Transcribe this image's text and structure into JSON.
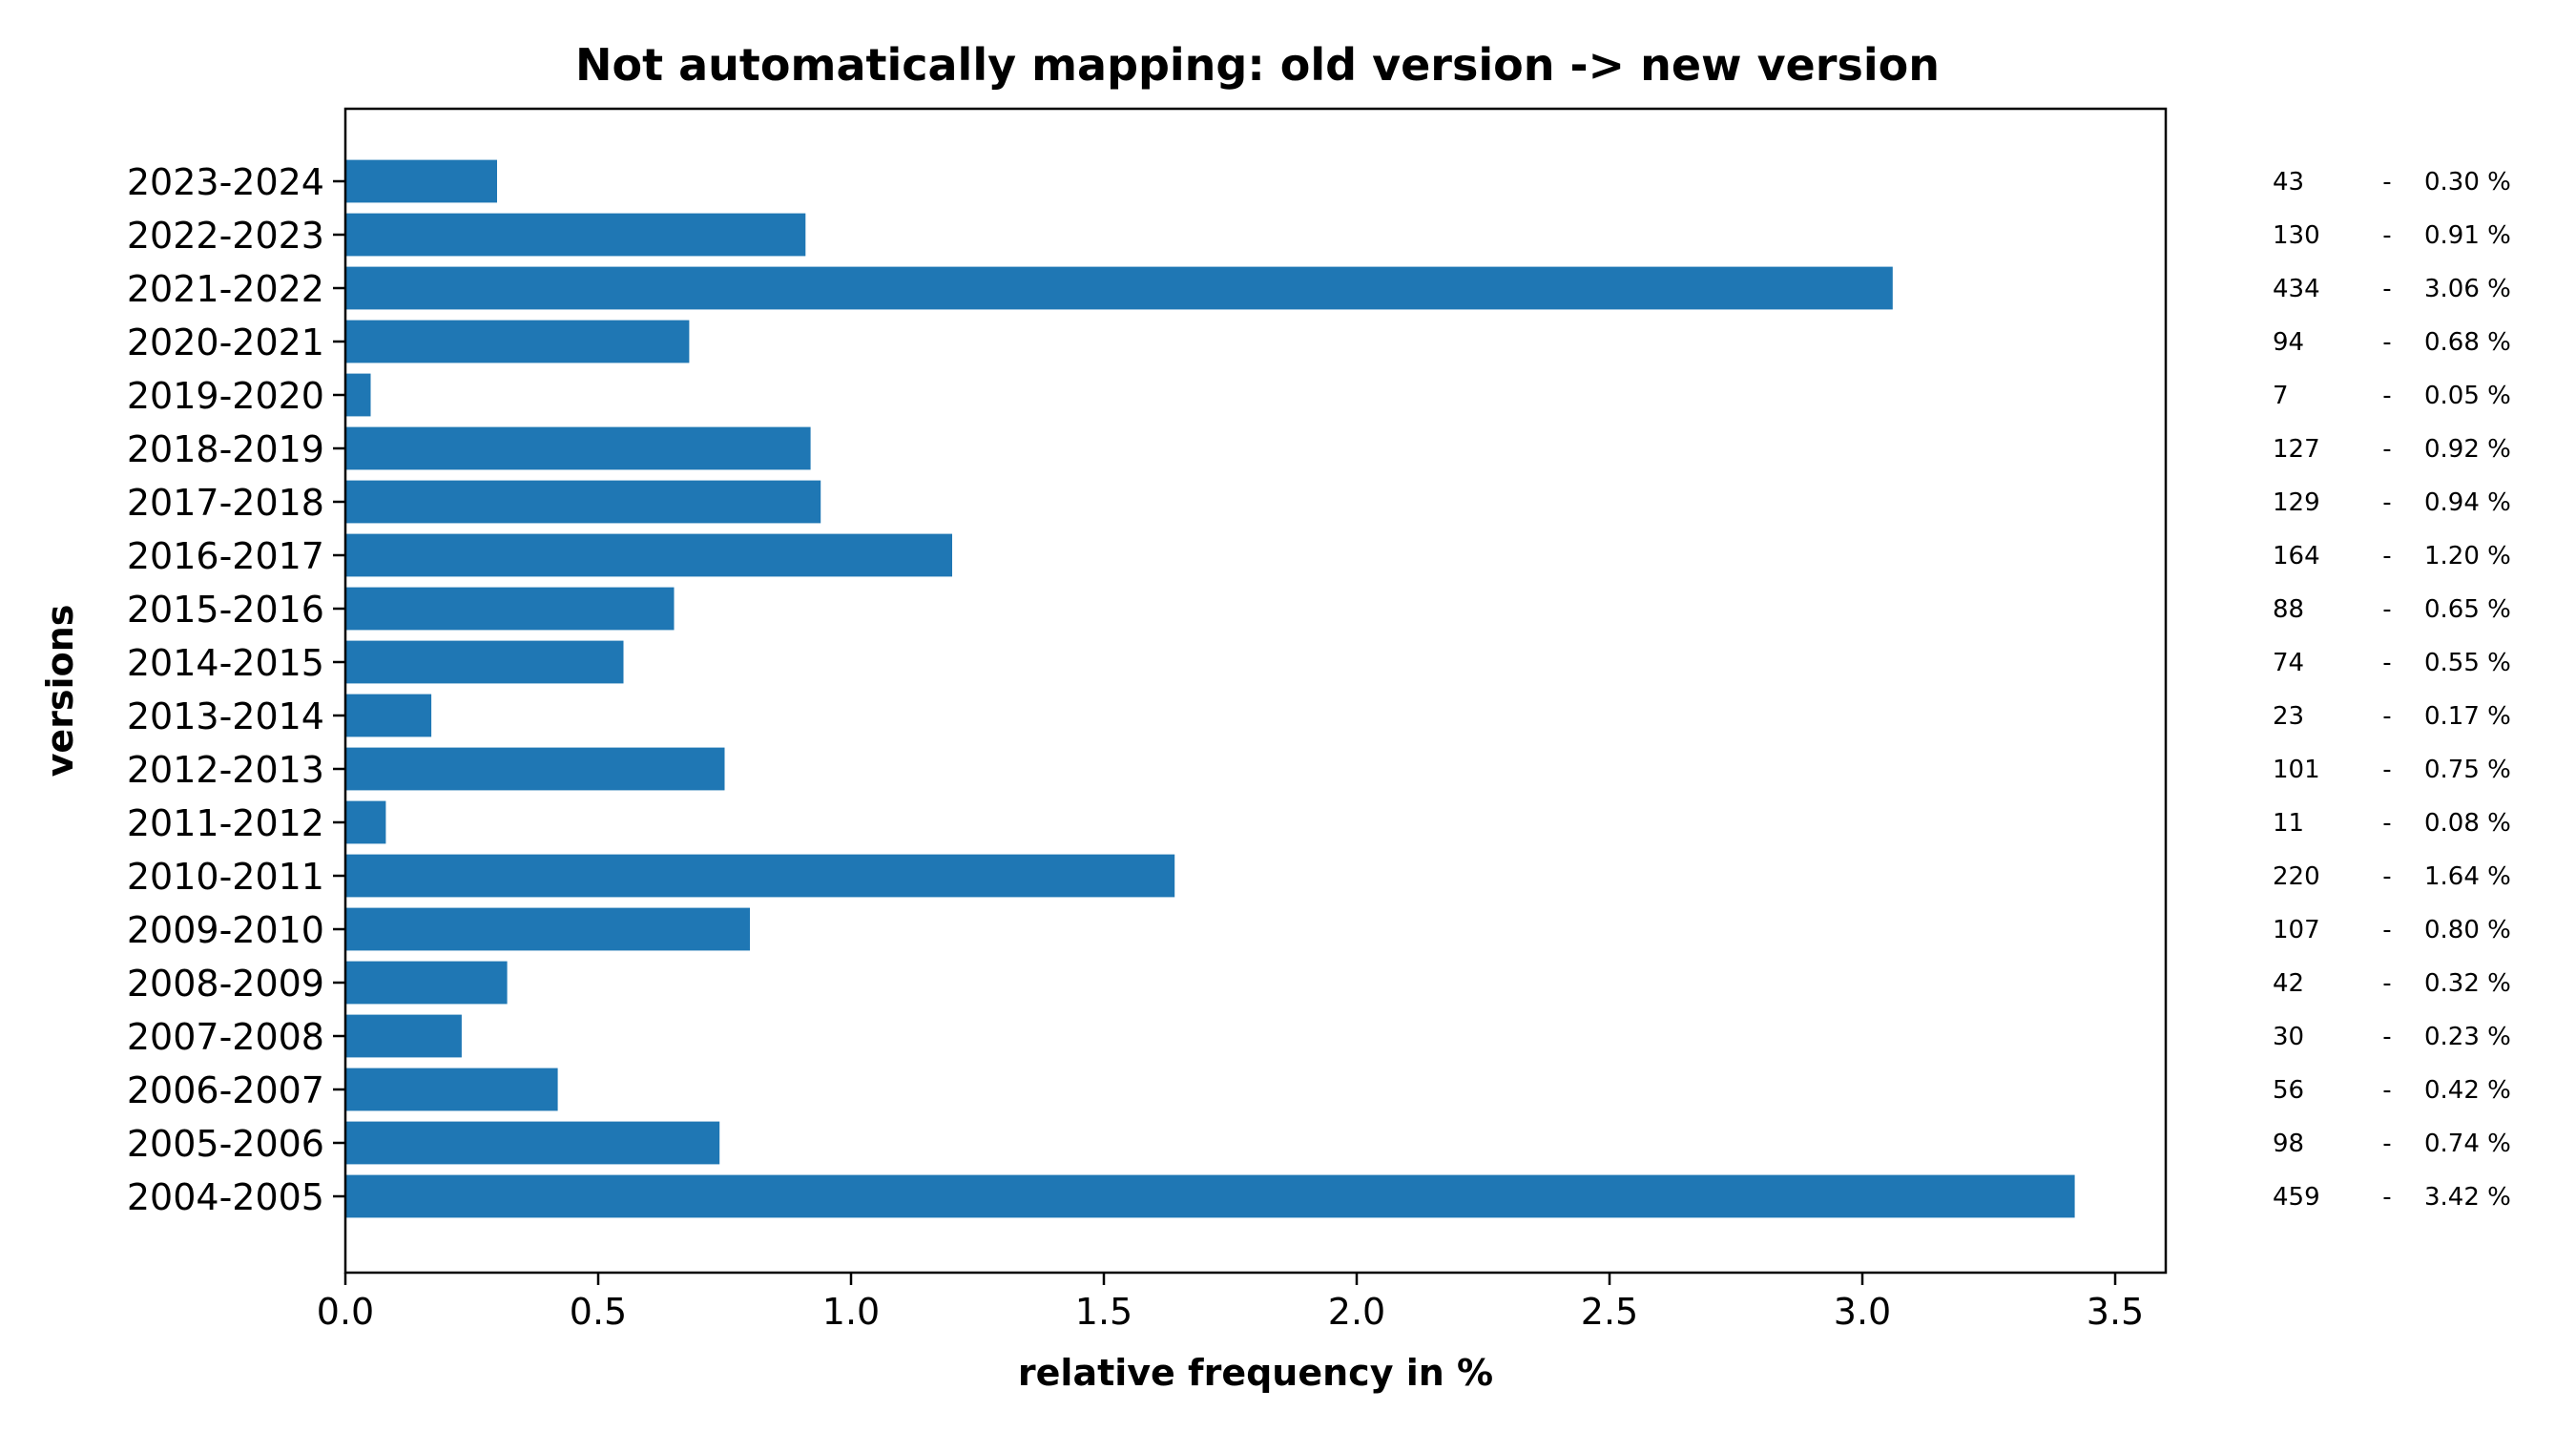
{
  "chart_data": {
    "type": "bar",
    "orientation": "horizontal",
    "title": "Not automatically mapping: old version -> new version",
    "xlabel": "relative frequency in %",
    "ylabel": "versions",
    "xlim": [
      0,
      3.6
    ],
    "xticks": [
      "0.0",
      "0.5",
      "1.0",
      "1.5",
      "2.0",
      "2.5",
      "3.0",
      "3.5"
    ],
    "grid": false,
    "bar_color": "#1f77b4",
    "categories": [
      "2023-2024",
      "2022-2023",
      "2021-2022",
      "2020-2021",
      "2019-2020",
      "2018-2019",
      "2017-2018",
      "2016-2017",
      "2015-2016",
      "2014-2015",
      "2013-2014",
      "2012-2013",
      "2011-2012",
      "2010-2011",
      "2009-2010",
      "2008-2009",
      "2007-2008",
      "2006-2007",
      "2005-2006",
      "2004-2005"
    ],
    "values": [
      0.3,
      0.91,
      3.06,
      0.68,
      0.05,
      0.92,
      0.94,
      1.2,
      0.65,
      0.55,
      0.17,
      0.75,
      0.08,
      1.64,
      0.8,
      0.32,
      0.23,
      0.42,
      0.74,
      3.42
    ],
    "annotations": [
      {
        "count": "43",
        "sep": "-",
        "percent": "0.30 %"
      },
      {
        "count": "130",
        "sep": "-",
        "percent": "0.91 %"
      },
      {
        "count": "434",
        "sep": "-",
        "percent": "3.06 %"
      },
      {
        "count": "94",
        "sep": "-",
        "percent": "0.68 %"
      },
      {
        "count": "7",
        "sep": "-",
        "percent": "0.05 %"
      },
      {
        "count": "127",
        "sep": "-",
        "percent": "0.92 %"
      },
      {
        "count": "129",
        "sep": "-",
        "percent": "0.94 %"
      },
      {
        "count": "164",
        "sep": "-",
        "percent": "1.20 %"
      },
      {
        "count": "88",
        "sep": "-",
        "percent": "0.65 %"
      },
      {
        "count": "74",
        "sep": "-",
        "percent": "0.55 %"
      },
      {
        "count": "23",
        "sep": "-",
        "percent": "0.17 %"
      },
      {
        "count": "101",
        "sep": "-",
        "percent": "0.75 %"
      },
      {
        "count": "11",
        "sep": "-",
        "percent": "0.08 %"
      },
      {
        "count": "220",
        "sep": "-",
        "percent": "1.64 %"
      },
      {
        "count": "107",
        "sep": "-",
        "percent": "0.80 %"
      },
      {
        "count": "42",
        "sep": "-",
        "percent": "0.32 %"
      },
      {
        "count": "30",
        "sep": "-",
        "percent": "0.23 %"
      },
      {
        "count": "56",
        "sep": "-",
        "percent": "0.42 %"
      },
      {
        "count": "98",
        "sep": "-",
        "percent": "0.74 %"
      },
      {
        "count": "459",
        "sep": "-",
        "percent": "3.42 %"
      }
    ]
  }
}
